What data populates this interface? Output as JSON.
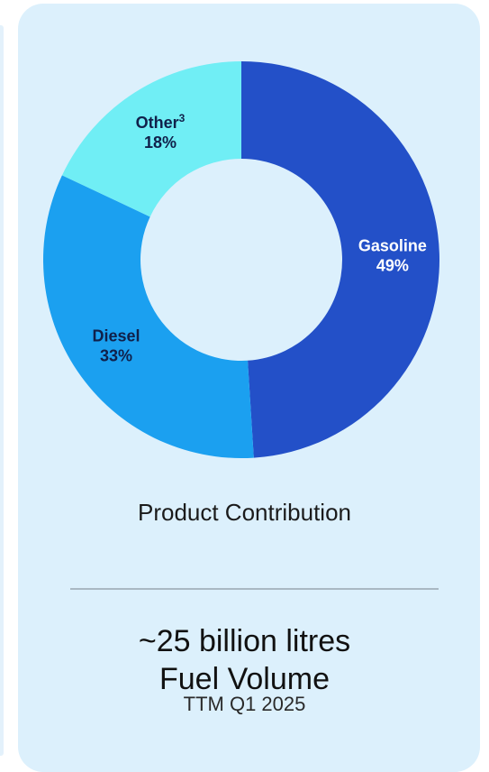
{
  "chart_data": {
    "type": "pie",
    "style": "donut",
    "categories": [
      "Gasoline",
      "Diesel",
      "Other"
    ],
    "values": [
      49,
      33,
      18
    ],
    "labels": [
      {
        "name": "Gasoline",
        "pct": "49%",
        "sup": ""
      },
      {
        "name": "Diesel",
        "pct": "33%",
        "sup": ""
      },
      {
        "name": "Other",
        "pct": "18%",
        "sup": "3"
      }
    ],
    "colors": [
      "#2350c8",
      "#1ba0f0",
      "#70eef5"
    ],
    "label_colors": [
      "#ffffff",
      "#10204a",
      "#10204a"
    ]
  },
  "caption": "Product Contribution",
  "stat": {
    "line1": "~25 billion litres",
    "line2": "Fuel Volume",
    "sub": "TTM Q1 2025"
  }
}
